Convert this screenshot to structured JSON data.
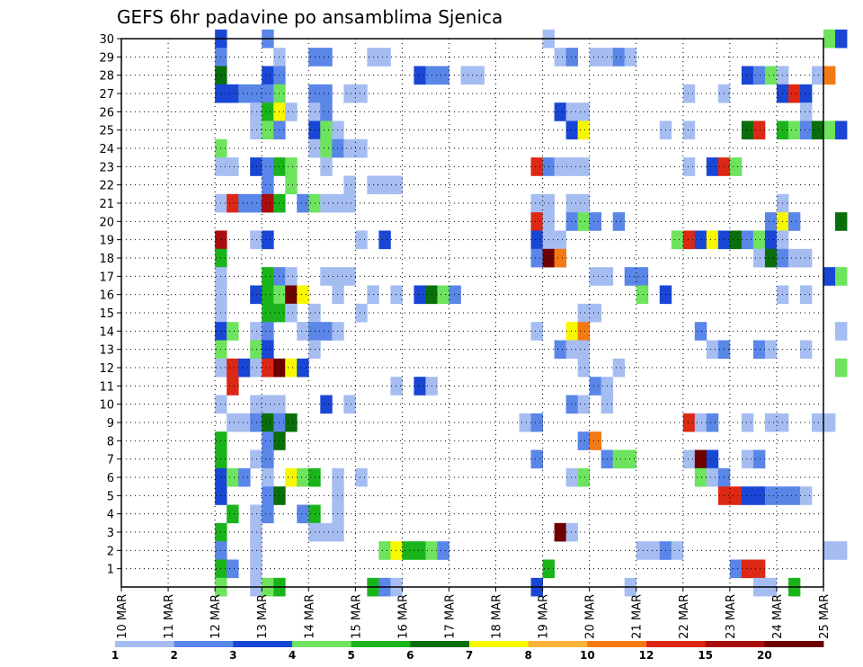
{
  "chart_data": {
    "type": "heatmap",
    "title": "GEFS 6hr padavine po ansamblima Sjenica",
    "xlabel": "",
    "ylabel": "",
    "x_ticks": [
      "10 MAR",
      "11 MAR",
      "12 MAR",
      "13 MAR",
      "14 MAR",
      "15 MAR",
      "16 MAR",
      "17 MAR",
      "18 MAR",
      "19 MAR",
      "20 MAR",
      "21 MAR",
      "22 MAR",
      "23 MAR",
      "24 MAR",
      "25 MAR"
    ],
    "x_range_days": [
      10,
      25
    ],
    "y_ticks": [
      1,
      2,
      3,
      4,
      5,
      6,
      7,
      8,
      9,
      10,
      11,
      12,
      13,
      14,
      15,
      16,
      17,
      18,
      19,
      20,
      21,
      22,
      23,
      24,
      25,
      26,
      27,
      28,
      29,
      30
    ],
    "y_range": [
      0,
      30
    ],
    "grid": true,
    "legend_position": "bottom",
    "legend": {
      "labels": [
        "1",
        "2",
        "3",
        "4",
        "5",
        "6",
        "7",
        "8",
        "10",
        "12",
        "15",
        "20"
      ],
      "colors": [
        "#a6bdf2",
        "#5a86e8",
        "#1a46d6",
        "#6ee35e",
        "#1ab41a",
        "#0a6e0a",
        "#f7f700",
        "#fbb23a",
        "#f37a12",
        "#dc2814",
        "#a80e0e",
        "#6e0000"
      ]
    },
    "cells": [
      [
        12.0,
        30,
        3
      ],
      [
        13.0,
        30,
        2
      ],
      [
        19.0,
        30,
        1
      ],
      [
        25.0,
        30,
        4
      ],
      [
        25.25,
        30,
        3
      ],
      [
        12.0,
        29,
        2
      ],
      [
        13.25,
        29,
        1
      ],
      [
        14.0,
        29,
        2
      ],
      [
        14.25,
        29,
        2
      ],
      [
        15.25,
        29,
        1
      ],
      [
        15.5,
        29,
        1
      ],
      [
        19.25,
        29,
        1
      ],
      [
        19.5,
        29,
        2
      ],
      [
        20.0,
        29,
        1
      ],
      [
        20.25,
        29,
        1
      ],
      [
        20.5,
        29,
        2
      ],
      [
        20.75,
        29,
        1
      ],
      [
        12.0,
        28,
        6
      ],
      [
        13.0,
        28,
        3
      ],
      [
        13.25,
        28,
        2
      ],
      [
        16.25,
        28,
        3
      ],
      [
        16.5,
        28,
        2
      ],
      [
        16.75,
        28,
        2
      ],
      [
        17.25,
        28,
        1
      ],
      [
        17.5,
        28,
        1
      ],
      [
        23.25,
        28,
        3
      ],
      [
        23.5,
        28,
        2
      ],
      [
        23.75,
        28,
        4
      ],
      [
        24.0,
        28,
        1
      ],
      [
        24.75,
        28,
        1
      ],
      [
        25.0,
        28,
        9
      ],
      [
        12.0,
        27,
        3
      ],
      [
        12.25,
        27,
        3
      ],
      [
        12.5,
        27,
        2
      ],
      [
        12.75,
        27,
        2
      ],
      [
        13.0,
        27,
        2
      ],
      [
        13.25,
        27,
        4
      ],
      [
        14.0,
        27,
        2
      ],
      [
        14.25,
        27,
        2
      ],
      [
        14.75,
        27,
        1
      ],
      [
        15.0,
        27,
        1
      ],
      [
        22.0,
        27,
        1
      ],
      [
        22.75,
        27,
        1
      ],
      [
        24.0,
        27,
        3
      ],
      [
        24.25,
        27,
        10
      ],
      [
        24.5,
        27,
        3
      ],
      [
        12.75,
        26,
        1
      ],
      [
        13.0,
        26,
        5
      ],
      [
        13.25,
        26,
        7
      ],
      [
        13.5,
        26,
        1
      ],
      [
        14.0,
        26,
        1
      ],
      [
        14.25,
        26,
        2
      ],
      [
        19.25,
        26,
        3
      ],
      [
        19.5,
        26,
        1
      ],
      [
        19.75,
        26,
        1
      ],
      [
        24.5,
        26,
        1
      ],
      [
        12.75,
        25,
        1
      ],
      [
        13.0,
        25,
        4
      ],
      [
        13.25,
        25,
        2
      ],
      [
        14.0,
        25,
        3
      ],
      [
        14.25,
        25,
        4
      ],
      [
        14.5,
        25,
        1
      ],
      [
        19.5,
        25,
        3
      ],
      [
        19.75,
        25,
        7
      ],
      [
        21.5,
        25,
        1
      ],
      [
        22.0,
        25,
        1
      ],
      [
        23.25,
        25,
        6
      ],
      [
        23.5,
        25,
        10
      ],
      [
        24.0,
        25,
        5
      ],
      [
        24.25,
        25,
        4
      ],
      [
        24.5,
        25,
        2
      ],
      [
        24.75,
        25,
        6
      ],
      [
        25.0,
        25,
        4
      ],
      [
        25.25,
        25,
        3
      ],
      [
        12.0,
        24,
        4
      ],
      [
        14.0,
        24,
        1
      ],
      [
        14.25,
        24,
        4
      ],
      [
        14.5,
        24,
        2
      ],
      [
        14.75,
        24,
        1
      ],
      [
        15.0,
        24,
        1
      ],
      [
        12.0,
        23,
        1
      ],
      [
        12.25,
        23,
        1
      ],
      [
        12.75,
        23,
        3
      ],
      [
        13.0,
        23,
        2
      ],
      [
        13.25,
        23,
        5
      ],
      [
        13.5,
        23,
        4
      ],
      [
        14.25,
        23,
        1
      ],
      [
        18.75,
        23,
        10
      ],
      [
        19.0,
        23,
        2
      ],
      [
        19.25,
        23,
        1
      ],
      [
        19.5,
        23,
        1
      ],
      [
        19.75,
        23,
        1
      ],
      [
        22.0,
        23,
        1
      ],
      [
        22.5,
        23,
        3
      ],
      [
        22.75,
        23,
        10
      ],
      [
        23.0,
        23,
        4
      ],
      [
        13.0,
        22,
        2
      ],
      [
        13.5,
        22,
        4
      ],
      [
        14.75,
        22,
        1
      ],
      [
        15.25,
        22,
        1
      ],
      [
        15.5,
        22,
        1
      ],
      [
        15.75,
        22,
        1
      ],
      [
        12.0,
        21,
        1
      ],
      [
        12.25,
        21,
        10
      ],
      [
        12.5,
        21,
        2
      ],
      [
        12.75,
        21,
        2
      ],
      [
        13.0,
        21,
        11
      ],
      [
        13.25,
        21,
        5
      ],
      [
        13.75,
        21,
        2
      ],
      [
        14.0,
        21,
        4
      ],
      [
        14.25,
        21,
        1
      ],
      [
        14.5,
        21,
        1
      ],
      [
        14.75,
        21,
        1
      ],
      [
        18.75,
        21,
        1
      ],
      [
        19.0,
        21,
        1
      ],
      [
        19.5,
        21,
        1
      ],
      [
        19.75,
        21,
        1
      ],
      [
        24.0,
        21,
        1
      ],
      [
        18.75,
        20,
        10
      ],
      [
        19.0,
        20,
        1
      ],
      [
        19.5,
        20,
        2
      ],
      [
        19.75,
        20,
        4
      ],
      [
        20.0,
        20,
        2
      ],
      [
        20.5,
        20,
        2
      ],
      [
        23.75,
        20,
        2
      ],
      [
        24.0,
        20,
        7
      ],
      [
        24.25,
        20,
        2
      ],
      [
        25.25,
        20,
        6
      ],
      [
        12.0,
        19,
        11
      ],
      [
        12.75,
        19,
        1
      ],
      [
        13.0,
        19,
        3
      ],
      [
        15.0,
        19,
        1
      ],
      [
        15.5,
        19,
        3
      ],
      [
        18.75,
        19,
        3
      ],
      [
        19.0,
        19,
        1
      ],
      [
        19.25,
        19,
        1
      ],
      [
        21.75,
        19,
        4
      ],
      [
        22.0,
        19,
        10
      ],
      [
        22.25,
        19,
        3
      ],
      [
        22.5,
        19,
        7
      ],
      [
        22.75,
        19,
        3
      ],
      [
        23.0,
        19,
        6
      ],
      [
        23.25,
        19,
        2
      ],
      [
        23.5,
        19,
        4
      ],
      [
        23.75,
        19,
        3
      ],
      [
        24.0,
        19,
        1
      ],
      [
        12.0,
        18,
        5
      ],
      [
        18.75,
        18,
        2
      ],
      [
        19.0,
        18,
        12
      ],
      [
        19.25,
        18,
        9
      ],
      [
        23.5,
        18,
        1
      ],
      [
        23.75,
        18,
        6
      ],
      [
        24.0,
        18,
        2
      ],
      [
        24.25,
        18,
        1
      ],
      [
        24.5,
        18,
        1
      ],
      [
        12.0,
        17,
        1
      ],
      [
        13.0,
        17,
        5
      ],
      [
        13.25,
        17,
        2
      ],
      [
        13.5,
        17,
        1
      ],
      [
        14.25,
        17,
        1
      ],
      [
        14.5,
        17,
        1
      ],
      [
        14.75,
        17,
        1
      ],
      [
        20.0,
        17,
        1
      ],
      [
        20.25,
        17,
        1
      ],
      [
        20.75,
        17,
        2
      ],
      [
        21.0,
        17,
        2
      ],
      [
        25.0,
        17,
        3
      ],
      [
        25.25,
        17,
        4
      ],
      [
        12.0,
        16,
        1
      ],
      [
        12.75,
        16,
        3
      ],
      [
        13.0,
        16,
        5
      ],
      [
        13.25,
        16,
        4
      ],
      [
        13.5,
        16,
        12
      ],
      [
        13.75,
        16,
        7
      ],
      [
        14.5,
        16,
        1
      ],
      [
        15.25,
        16,
        1
      ],
      [
        15.75,
        16,
        1
      ],
      [
        16.25,
        16,
        3
      ],
      [
        16.5,
        16,
        6
      ],
      [
        16.75,
        16,
        4
      ],
      [
        17.0,
        16,
        2
      ],
      [
        21.0,
        16,
        4
      ],
      [
        21.5,
        16,
        3
      ],
      [
        24.0,
        16,
        1
      ],
      [
        24.5,
        16,
        1
      ],
      [
        12.0,
        15,
        1
      ],
      [
        13.0,
        15,
        5
      ],
      [
        13.25,
        15,
        5
      ],
      [
        13.5,
        15,
        1
      ],
      [
        14.0,
        15,
        1
      ],
      [
        15.0,
        15,
        1
      ],
      [
        19.75,
        15,
        1
      ],
      [
        20.0,
        15,
        1
      ],
      [
        12.0,
        14,
        3
      ],
      [
        12.25,
        14,
        4
      ],
      [
        12.75,
        14,
        1
      ],
      [
        13.0,
        14,
        2
      ],
      [
        13.75,
        14,
        1
      ],
      [
        14.0,
        14,
        2
      ],
      [
        14.25,
        14,
        2
      ],
      [
        14.5,
        14,
        1
      ],
      [
        18.75,
        14,
        1
      ],
      [
        19.5,
        14,
        7
      ],
      [
        19.75,
        14,
        9
      ],
      [
        22.25,
        14,
        2
      ],
      [
        25.25,
        14,
        1
      ],
      [
        12.0,
        13,
        4
      ],
      [
        12.75,
        13,
        4
      ],
      [
        13.0,
        13,
        3
      ],
      [
        14.0,
        13,
        1
      ],
      [
        19.25,
        13,
        2
      ],
      [
        19.5,
        13,
        1
      ],
      [
        19.75,
        13,
        1
      ],
      [
        22.5,
        13,
        1
      ],
      [
        22.75,
        13,
        2
      ],
      [
        23.5,
        13,
        2
      ],
      [
        23.75,
        13,
        1
      ],
      [
        24.5,
        13,
        1
      ],
      [
        12.0,
        12,
        1
      ],
      [
        12.25,
        12,
        10
      ],
      [
        12.5,
        12,
        3
      ],
      [
        12.75,
        12,
        1
      ],
      [
        13.0,
        12,
        10
      ],
      [
        13.25,
        12,
        12
      ],
      [
        13.5,
        12,
        7
      ],
      [
        13.75,
        12,
        3
      ],
      [
        19.75,
        12,
        1
      ],
      [
        20.5,
        12,
        1
      ],
      [
        25.25,
        12,
        4
      ],
      [
        12.25,
        11,
        10
      ],
      [
        15.75,
        11,
        1
      ],
      [
        16.25,
        11,
        3
      ],
      [
        16.5,
        11,
        1
      ],
      [
        20.0,
        11,
        2
      ],
      [
        20.25,
        11,
        1
      ],
      [
        12.0,
        10,
        1
      ],
      [
        12.75,
        10,
        1
      ],
      [
        13.0,
        10,
        1
      ],
      [
        13.25,
        10,
        1
      ],
      [
        14.25,
        10,
        3
      ],
      [
        14.75,
        10,
        1
      ],
      [
        19.5,
        10,
        2
      ],
      [
        19.75,
        10,
        1
      ],
      [
        20.25,
        10,
        1
      ],
      [
        12.25,
        9,
        1
      ],
      [
        12.5,
        9,
        1
      ],
      [
        12.75,
        9,
        2
      ],
      [
        13.0,
        9,
        6
      ],
      [
        13.25,
        9,
        2
      ],
      [
        13.5,
        9,
        6
      ],
      [
        18.5,
        9,
        1
      ],
      [
        18.75,
        9,
        2
      ],
      [
        22.0,
        9,
        10
      ],
      [
        22.25,
        9,
        1
      ],
      [
        22.5,
        9,
        2
      ],
      [
        23.25,
        9,
        1
      ],
      [
        23.75,
        9,
        1
      ],
      [
        24.0,
        9,
        1
      ],
      [
        24.75,
        9,
        1
      ],
      [
        25.0,
        9,
        1
      ],
      [
        12.0,
        8,
        5
      ],
      [
        13.0,
        8,
        2
      ],
      [
        13.25,
        8,
        6
      ],
      [
        19.75,
        8,
        2
      ],
      [
        20.0,
        8,
        9
      ],
      [
        12.0,
        7,
        5
      ],
      [
        12.75,
        7,
        1
      ],
      [
        13.0,
        7,
        2
      ],
      [
        18.75,
        7,
        2
      ],
      [
        20.25,
        7,
        2
      ],
      [
        20.5,
        7,
        4
      ],
      [
        20.75,
        7,
        4
      ],
      [
        22.0,
        7,
        1
      ],
      [
        22.25,
        7,
        12
      ],
      [
        22.5,
        7,
        3
      ],
      [
        23.25,
        7,
        1
      ],
      [
        23.5,
        7,
        2
      ],
      [
        12.0,
        6,
        3
      ],
      [
        12.25,
        6,
        4
      ],
      [
        12.5,
        6,
        2
      ],
      [
        13.0,
        6,
        1
      ],
      [
        13.5,
        6,
        7
      ],
      [
        13.75,
        6,
        4
      ],
      [
        14.0,
        6,
        5
      ],
      [
        14.5,
        6,
        1
      ],
      [
        15.0,
        6,
        1
      ],
      [
        19.5,
        6,
        1
      ],
      [
        19.75,
        6,
        4
      ],
      [
        22.25,
        6,
        4
      ],
      [
        22.5,
        6,
        1
      ],
      [
        22.75,
        6,
        2
      ],
      [
        12.0,
        5,
        3
      ],
      [
        13.0,
        5,
        2
      ],
      [
        13.25,
        5,
        6
      ],
      [
        14.5,
        5,
        1
      ],
      [
        22.75,
        5,
        10
      ],
      [
        23.0,
        5,
        10
      ],
      [
        23.25,
        5,
        3
      ],
      [
        23.5,
        5,
        3
      ],
      [
        23.75,
        5,
        2
      ],
      [
        24.0,
        5,
        2
      ],
      [
        24.25,
        5,
        2
      ],
      [
        24.5,
        5,
        1
      ],
      [
        12.25,
        4,
        5
      ],
      [
        12.75,
        4,
        1
      ],
      [
        13.0,
        4,
        2
      ],
      [
        13.75,
        4,
        2
      ],
      [
        14.0,
        4,
        5
      ],
      [
        14.5,
        4,
        1
      ],
      [
        12.0,
        3,
        5
      ],
      [
        12.75,
        3,
        1
      ],
      [
        14.0,
        3,
        1
      ],
      [
        14.25,
        3,
        1
      ],
      [
        14.5,
        3,
        1
      ],
      [
        19.25,
        3,
        12
      ],
      [
        19.5,
        3,
        1
      ],
      [
        12.0,
        2,
        2
      ],
      [
        12.75,
        2,
        1
      ],
      [
        15.5,
        2,
        4
      ],
      [
        15.75,
        2,
        7
      ],
      [
        16.0,
        2,
        5
      ],
      [
        16.25,
        2,
        5
      ],
      [
        16.5,
        2,
        4
      ],
      [
        16.75,
        2,
        2
      ],
      [
        21.0,
        2,
        1
      ],
      [
        21.25,
        2,
        1
      ],
      [
        21.5,
        2,
        2
      ],
      [
        21.75,
        2,
        1
      ],
      [
        25.0,
        2,
        1
      ],
      [
        25.25,
        2,
        1
      ],
      [
        12.0,
        1,
        5
      ],
      [
        12.25,
        1,
        2
      ],
      [
        12.75,
        1,
        1
      ],
      [
        19.0,
        1,
        5
      ],
      [
        23.0,
        1,
        2
      ],
      [
        23.25,
        1,
        10
      ],
      [
        23.5,
        1,
        10
      ],
      [
        12.0,
        0,
        4
      ],
      [
        12.75,
        0,
        1
      ],
      [
        13.0,
        0,
        4
      ],
      [
        13.25,
        0,
        5
      ],
      [
        15.25,
        0,
        5
      ],
      [
        15.5,
        0,
        2
      ],
      [
        15.75,
        0,
        1
      ],
      [
        18.75,
        0,
        3
      ],
      [
        20.75,
        0,
        1
      ],
      [
        23.5,
        0,
        1
      ],
      [
        23.75,
        0,
        1
      ],
      [
        24.25,
        0,
        5
      ]
    ]
  }
}
